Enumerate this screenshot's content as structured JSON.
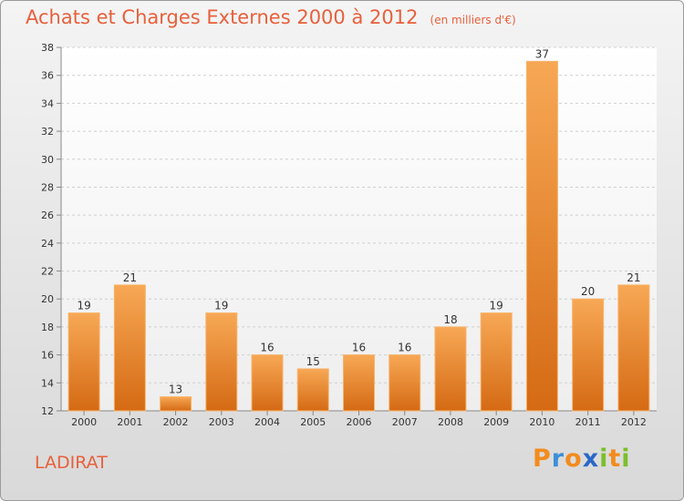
{
  "title": "Achats et Charges Externes 2000 à 2012",
  "unit_note": "(en milliers d'€)",
  "place": "LADIRAT",
  "logo": {
    "letters": [
      "P",
      "r",
      "o",
      "x",
      "i",
      "t",
      "i"
    ],
    "colors": [
      "#f28c1e",
      "#3d8fd6",
      "#f28c1e",
      "#2b67c8",
      "#7bbf2a",
      "#f28c1e",
      "#7bbf2a"
    ]
  },
  "colors": {
    "bar_top": "#f7a855",
    "bar_bottom": "#d56a14",
    "title": "#e8603c"
  },
  "chart_data": {
    "type": "bar",
    "categories": [
      "2000",
      "2001",
      "2002",
      "2003",
      "2004",
      "2005",
      "2006",
      "2007",
      "2008",
      "2009",
      "2010",
      "2011",
      "2012"
    ],
    "values": [
      19,
      21,
      13,
      19,
      16,
      15,
      16,
      16,
      18,
      19,
      37,
      20,
      21
    ],
    "ylim": [
      12,
      38
    ],
    "yticks": [
      12,
      14,
      16,
      18,
      20,
      22,
      24,
      26,
      28,
      30,
      32,
      34,
      36,
      38
    ],
    "grid": true,
    "data_labels": true
  }
}
